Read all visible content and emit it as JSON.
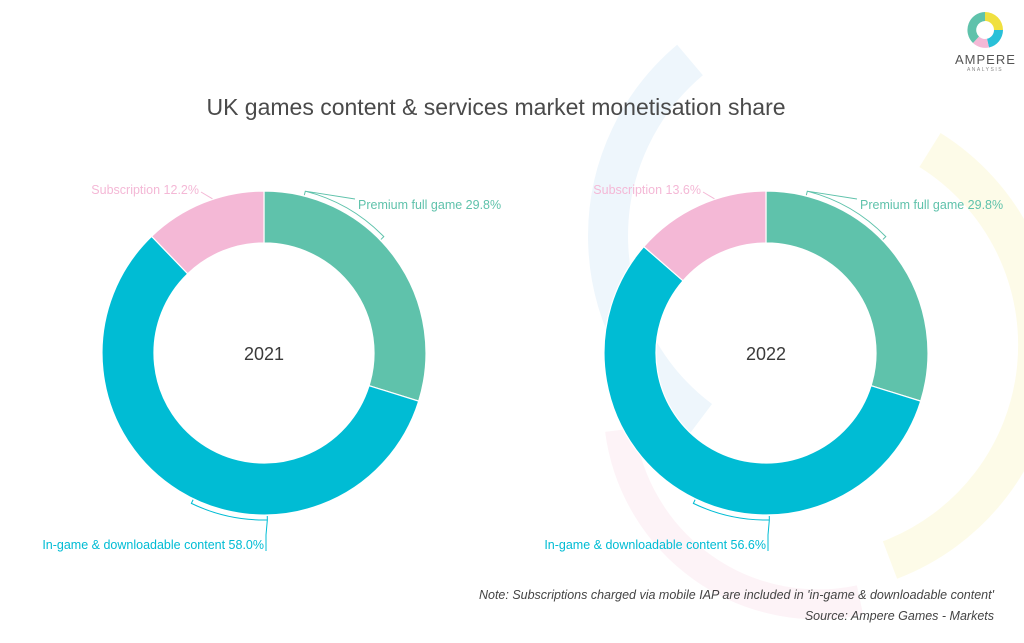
{
  "title": "UK games content & services market monetisation share",
  "logo": {
    "name": "AMPERE",
    "sub": "ANALYSIS"
  },
  "note": "Note: Subscriptions charged via mobile IAP are included in 'in-game & downloadable content'",
  "source": "Source: Ampere Games - Markets",
  "colors": {
    "premium": "#5fc2ab",
    "ingame": "#00bcd4",
    "subscription": "#f4b8d6"
  },
  "chart_data": [
    {
      "type": "pie",
      "title": "2021",
      "center_label": "2021",
      "slices": [
        {
          "label": "Premium full game",
          "value": 29.8,
          "text": "Premium full game 29.8%"
        },
        {
          "label": "In-game & downloadable content",
          "value": 58.0,
          "text": "In-game & downloadable content 58.0%"
        },
        {
          "label": "Subscription",
          "value": 12.2,
          "text": "Subscription 12.2%"
        }
      ]
    },
    {
      "type": "pie",
      "title": "2022",
      "center_label": "2022",
      "slices": [
        {
          "label": "Premium full game",
          "value": 29.8,
          "text": "Premium full game 29.8%"
        },
        {
          "label": "In-game & downloadable content",
          "value": 56.6,
          "text": "In-game & downloadable content 56.6%"
        },
        {
          "label": "Subscription",
          "value": 13.6,
          "text": "Subscription 13.6%"
        }
      ]
    }
  ]
}
